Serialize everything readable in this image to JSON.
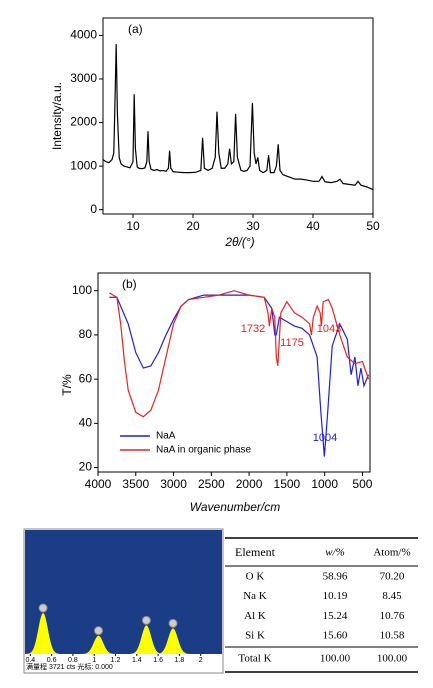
{
  "chart_data": [
    {
      "type": "line",
      "title": "(a)",
      "x_label": "2θ/(°)",
      "y_label": "Intensity/a.u.",
      "xlim": [
        5,
        50
      ],
      "ylim": [
        -100,
        4400
      ],
      "xticks": [
        10,
        20,
        30,
        40,
        50
      ],
      "yticks": [
        0,
        1000,
        2000,
        3000,
        4000
      ],
      "series": [
        {
          "color": "#000000",
          "x": [
            5,
            5.5,
            6,
            6.5,
            6.8,
            7.0,
            7.2,
            7.4,
            7.7,
            8,
            8.5,
            9,
            9.5,
            10,
            10.2,
            10.4,
            10.7,
            11,
            11.5,
            12,
            12.3,
            12.5,
            12.7,
            13,
            13.5,
            14,
            14.5,
            15,
            15.5,
            15.9,
            16.1,
            16.3,
            16.7,
            17.5,
            18.5,
            19.5,
            20.5,
            21.3,
            21.6,
            21.9,
            22.5,
            23.2,
            23.7,
            24.0,
            24.3,
            24.7,
            25.3,
            25.8,
            26.1,
            26.4,
            26.8,
            27.1,
            27.4,
            28,
            28.5,
            29,
            29.5,
            29.9,
            30.2,
            30.5,
            30.8,
            31.1,
            31.7,
            32.3,
            32.6,
            32.9,
            33.5,
            33.9,
            34.2,
            34.5,
            35,
            36,
            37,
            38,
            39,
            40,
            41,
            41.5,
            42,
            43,
            44,
            44.5,
            45,
            46,
            47,
            47.5,
            48,
            49,
            50
          ],
          "values": [
            1150,
            1100,
            1080,
            1150,
            1300,
            2500,
            3800,
            2200,
            1200,
            1050,
            1000,
            980,
            960,
            1100,
            2650,
            1400,
            980,
            950,
            940,
            960,
            1100,
            1800,
            1100,
            930,
            900,
            920,
            890,
            900,
            880,
            950,
            1350,
            950,
            870,
            860,
            850,
            850,
            860,
            900,
            1650,
            950,
            900,
            950,
            1200,
            2250,
            1300,
            950,
            950,
            1050,
            1400,
            1050,
            1100,
            2200,
            1200,
            900,
            880,
            900,
            1000,
            2450,
            1300,
            1050,
            1200,
            900,
            850,
            900,
            1250,
            850,
            850,
            1000,
            1500,
            900,
            800,
            750,
            700,
            700,
            680,
            650,
            650,
            760,
            640,
            620,
            650,
            700,
            600,
            580,
            560,
            650,
            560,
            520,
            460
          ]
        }
      ]
    },
    {
      "type": "line",
      "title": "(b)",
      "x_label": "Wavenumber/cm",
      "y_label": "T/%",
      "xlim": [
        4000,
        400
      ],
      "ylim": [
        18,
        108
      ],
      "xticks": [
        4000,
        3500,
        3000,
        2500,
        2000,
        1500,
        1000,
        500
      ],
      "yticks": [
        20,
        40,
        60,
        80,
        100
      ],
      "legend": "lower left",
      "series": [
        {
          "name": "NaA",
          "color": "#1f1fdd",
          "x": [
            3850,
            3750,
            3700,
            3600,
            3500,
            3400,
            3300,
            3200,
            3100,
            3000,
            2900,
            2800,
            2600,
            2400,
            2200,
            2000,
            1800,
            1700,
            1660,
            1640,
            1600,
            1500,
            1400,
            1300,
            1200,
            1100,
            1050,
            1004,
            960,
            900,
            800,
            700,
            650,
            600,
            560,
            520,
            480,
            420
          ],
          "values": [
            97,
            97,
            93,
            85,
            72,
            65,
            66,
            72,
            80,
            87,
            93,
            96,
            98,
            98,
            98,
            98,
            97,
            92,
            80,
            80,
            88,
            86,
            84,
            83,
            80,
            70,
            45,
            25,
            45,
            75,
            85,
            78,
            62,
            70,
            57,
            65,
            57,
            62
          ]
        },
        {
          "name": "NaA in organic phase",
          "color": "#e8231f",
          "x": [
            3850,
            3750,
            3700,
            3650,
            3600,
            3500,
            3400,
            3300,
            3200,
            3100,
            3000,
            2900,
            2800,
            2600,
            2400,
            2200,
            2000,
            1800,
            1750,
            1732,
            1700,
            1660,
            1640,
            1620,
            1580,
            1500,
            1400,
            1300,
            1200,
            1175,
            1150,
            1100,
            1060,
            1043,
            1020,
            950,
            900,
            800,
            700,
            600,
            500,
            420
          ],
          "values": [
            99,
            97,
            85,
            68,
            55,
            45,
            43,
            46,
            55,
            70,
            85,
            93,
            96,
            97,
            98,
            100,
            98,
            97,
            90,
            84,
            92,
            88,
            70,
            66,
            90,
            95,
            90,
            88,
            85,
            80,
            88,
            93,
            90,
            84,
            95,
            96,
            92,
            80,
            70,
            67,
            68,
            60
          ]
        }
      ],
      "annotations": [
        {
          "label": "1732",
          "color": "#e8231f"
        },
        {
          "label": "1175",
          "color": "#e8231f"
        },
        {
          "label": "1043",
          "color": "#e8231f"
        },
        {
          "label": "1004",
          "color": "#1f1fdd"
        }
      ]
    },
    {
      "type": "spectrum",
      "xlim": [
        0.35,
        2.2
      ],
      "ylim": [
        0,
        3721
      ],
      "xticks": [
        0.4,
        0.6,
        0.8,
        1,
        1.2,
        1.4,
        1.6,
        1.8,
        2
      ],
      "color": "#ffff00",
      "background": "#1b3d86",
      "peaks": [
        {
          "x": 0.52,
          "value": 1230
        },
        {
          "x": 1.04,
          "value": 550
        },
        {
          "x": 1.49,
          "value": 860
        },
        {
          "x": 1.74,
          "value": 770
        }
      ],
      "footer": "满量程 3721 cts 光标: 0.000"
    }
  ],
  "table": {
    "header": [
      "Element",
      "w/%",
      "Atom/%"
    ],
    "rows": [
      [
        "O K",
        "58.96",
        "70.20"
      ],
      [
        "Na K",
        "10.19",
        "8.45"
      ],
      [
        "Al K",
        "15.24",
        "10.76"
      ],
      [
        "Si K",
        "15.60",
        "10.58"
      ]
    ],
    "total": [
      "Total K",
      "100.00",
      "100.00"
    ]
  }
}
